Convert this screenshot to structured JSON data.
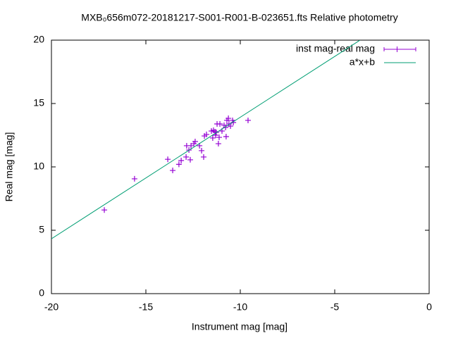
{
  "chart_data": {
    "type": "scatter",
    "title": "MXB₀656m072-20181217-S001-R001-B-023651.fts Relative photometry",
    "xlabel": "Instrument mag [mag]",
    "ylabel": "Real mag [mag]",
    "xlim": [
      -20,
      0
    ],
    "ylim": [
      0,
      20
    ],
    "xticks": [
      -20,
      -15,
      -10,
      -5,
      0
    ],
    "yticks": [
      0,
      5,
      10,
      15,
      20
    ],
    "legend": "top-right",
    "series": [
      {
        "name": "inst mag-real mag",
        "color": "#9400d3",
        "type": "scatter",
        "x": [
          -17.2,
          -15.6,
          -13.84,
          -13.58,
          -13.25,
          -13.13,
          -12.87,
          -12.84,
          -12.72,
          -12.65,
          -12.61,
          -12.46,
          -12.39,
          -12.16,
          -12.05,
          -11.94,
          -11.9,
          -11.79,
          -11.53,
          -11.46,
          -11.42,
          -11.34,
          -11.31,
          -11.27,
          -11.23,
          -11.16,
          -11.12,
          -11.08,
          -10.97,
          -10.86,
          -10.78,
          -10.75,
          -10.71,
          -10.63,
          -10.6,
          -10.52,
          -10.41,
          -10.37,
          -9.59
        ],
        "values": [
          6.6,
          9.06,
          10.6,
          9.72,
          10.2,
          10.5,
          10.78,
          11.67,
          11.33,
          10.56,
          11.67,
          11.83,
          12.0,
          11.67,
          11.28,
          10.78,
          12.44,
          12.56,
          12.83,
          12.28,
          12.89,
          12.78,
          12.5,
          12.72,
          13.39,
          11.83,
          12.33,
          13.39,
          12.83,
          13.28,
          13.11,
          12.39,
          13.67,
          13.83,
          13.39,
          13.22,
          13.67,
          13.5,
          13.67
        ]
      },
      {
        "name": "a*x+b",
        "color": "#009e73",
        "type": "line",
        "x": [
          -20,
          -3.66
        ],
        "values": [
          4.33,
          20
        ]
      }
    ]
  }
}
